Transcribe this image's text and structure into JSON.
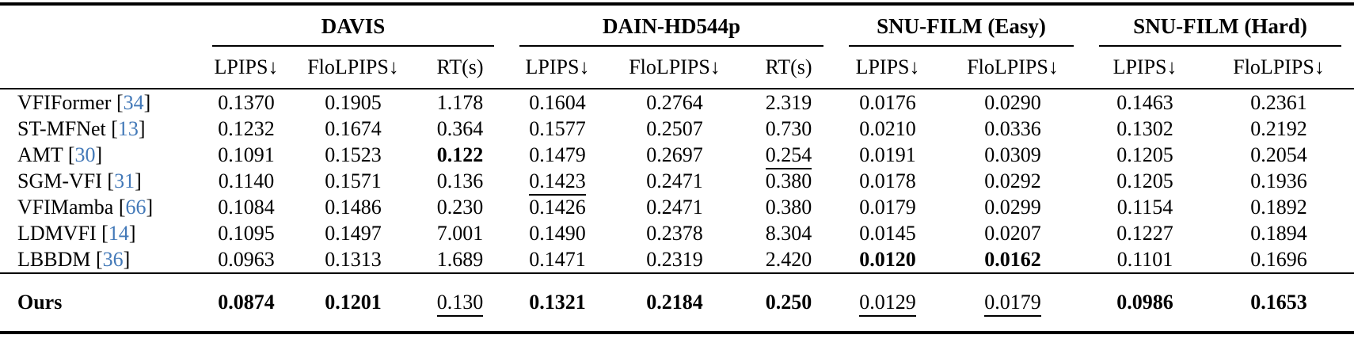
{
  "colors": {
    "citation_blue": "#4379b8",
    "text": "#000000",
    "background": "#ffffff",
    "rule": "#000000"
  },
  "table": {
    "method_col_header": "",
    "groups": [
      {
        "label": "DAVIS",
        "subcols": [
          "LPIPS↓",
          "FloLPIPS↓",
          "RT(s)"
        ]
      },
      {
        "label": "DAIN-HD544p",
        "subcols": [
          "LPIPS↓",
          "FloLPIPS↓",
          "RT(s)"
        ]
      },
      {
        "label": "SNU-FILM (Easy)",
        "subcols": [
          "LPIPS↓",
          "FloLPIPS↓"
        ]
      },
      {
        "label": "SNU-FILM (Hard)",
        "subcols": [
          "LPIPS↓",
          "FloLPIPS↓"
        ]
      }
    ],
    "style_legend": {
      "b": "bold = best",
      "u": "underline = second best"
    },
    "rows": [
      {
        "method": "VFIFormer",
        "cite": "34",
        "cells": [
          {
            "v": "0.1370"
          },
          {
            "v": "0.1905"
          },
          {
            "v": "1.178"
          },
          {
            "v": "0.1604"
          },
          {
            "v": "0.2764"
          },
          {
            "v": "2.319"
          },
          {
            "v": "0.0176"
          },
          {
            "v": "0.0290"
          },
          {
            "v": "0.1463"
          },
          {
            "v": "0.2361"
          }
        ]
      },
      {
        "method": "ST-MFNet",
        "cite": "13",
        "cells": [
          {
            "v": "0.1232"
          },
          {
            "v": "0.1674"
          },
          {
            "v": "0.364"
          },
          {
            "v": "0.1577"
          },
          {
            "v": "0.2507"
          },
          {
            "v": "0.730"
          },
          {
            "v": "0.0210"
          },
          {
            "v": "0.0336"
          },
          {
            "v": "0.1302"
          },
          {
            "v": "0.2192"
          }
        ]
      },
      {
        "method": "AMT",
        "cite": "30",
        "cells": [
          {
            "v": "0.1091"
          },
          {
            "v": "0.1523"
          },
          {
            "v": "0.122",
            "s": "b"
          },
          {
            "v": "0.1479"
          },
          {
            "v": "0.2697"
          },
          {
            "v": "0.254",
            "s": "u"
          },
          {
            "v": "0.0191"
          },
          {
            "v": "0.0309"
          },
          {
            "v": "0.1205"
          },
          {
            "v": "0.2054"
          }
        ]
      },
      {
        "method": "SGM-VFI",
        "cite": "31",
        "cells": [
          {
            "v": "0.1140"
          },
          {
            "v": "0.1571"
          },
          {
            "v": "0.136"
          },
          {
            "v": "0.1423",
            "s": "u"
          },
          {
            "v": "0.2471"
          },
          {
            "v": "0.380"
          },
          {
            "v": "0.0178"
          },
          {
            "v": "0.0292"
          },
          {
            "v": "0.1205"
          },
          {
            "v": "0.1936"
          }
        ]
      },
      {
        "method": "VFIMamba",
        "cite": "66",
        "cells": [
          {
            "v": "0.1084"
          },
          {
            "v": "0.1486"
          },
          {
            "v": "0.230"
          },
          {
            "v": "0.1426"
          },
          {
            "v": "0.2471"
          },
          {
            "v": "0.380"
          },
          {
            "v": "0.0179"
          },
          {
            "v": "0.0299"
          },
          {
            "v": "0.1154"
          },
          {
            "v": "0.1892"
          }
        ]
      },
      {
        "method": "LDMVFI",
        "cite": "14",
        "cells": [
          {
            "v": "0.1095"
          },
          {
            "v": "0.1497"
          },
          {
            "v": "7.001"
          },
          {
            "v": "0.1490"
          },
          {
            "v": "0.2378"
          },
          {
            "v": "8.304"
          },
          {
            "v": "0.0145"
          },
          {
            "v": "0.0207"
          },
          {
            "v": "0.1227"
          },
          {
            "v": "0.1894"
          }
        ]
      },
      {
        "method": "LBBDM",
        "cite": "36",
        "cells": [
          {
            "v": "0.0963",
            "s": "u"
          },
          {
            "v": "0.1313",
            "s": "u"
          },
          {
            "v": "1.689"
          },
          {
            "v": "0.1471"
          },
          {
            "v": "0.2319",
            "s": "u"
          },
          {
            "v": "2.420"
          },
          {
            "v": "0.0120",
            "s": "b"
          },
          {
            "v": "0.0162",
            "s": "b"
          },
          {
            "v": "0.1101",
            "s": "u"
          },
          {
            "v": "0.1696",
            "s": "u"
          }
        ]
      }
    ],
    "ours_row": {
      "method": "Ours",
      "bold": true,
      "cells": [
        {
          "v": "0.0874",
          "s": "b"
        },
        {
          "v": "0.1201",
          "s": "b"
        },
        {
          "v": "0.130",
          "s": "u"
        },
        {
          "v": "0.1321",
          "s": "b"
        },
        {
          "v": "0.2184",
          "s": "b"
        },
        {
          "v": "0.250",
          "s": "b"
        },
        {
          "v": "0.0129",
          "s": "u"
        },
        {
          "v": "0.0179",
          "s": "u"
        },
        {
          "v": "0.0986",
          "s": "b"
        },
        {
          "v": "0.1653",
          "s": "b"
        }
      ]
    }
  }
}
